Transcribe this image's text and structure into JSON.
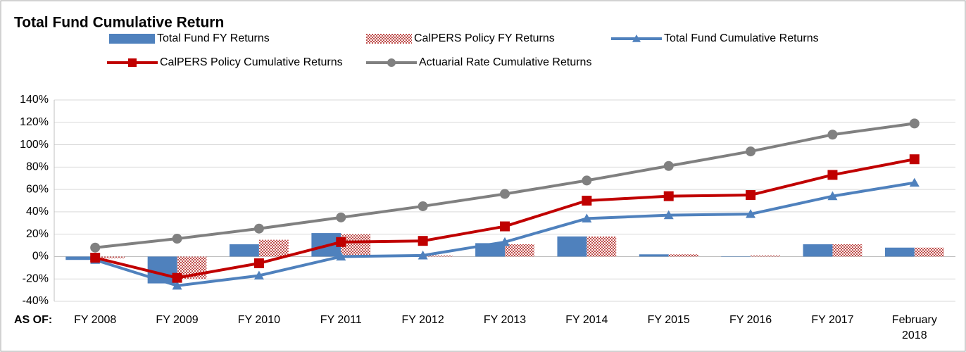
{
  "chart_data": {
    "type": "combo",
    "title": "Total Fund Cumulative Return",
    "xlabel": "AS OF:",
    "categories": [
      "FY 2008",
      "FY 2009",
      "FY 2010",
      "FY 2011",
      "FY 2012",
      "FY 2013",
      "FY 2014",
      "FY 2015",
      "FY 2016",
      "FY 2017",
      "February 2018"
    ],
    "series": [
      {
        "name": "Total Fund FY Returns",
        "type": "bar",
        "color": "#4f81bd",
        "pattern": false,
        "values": [
          -3,
          -24,
          11,
          21,
          0,
          12,
          18,
          2,
          0,
          11,
          8
        ]
      },
      {
        "name": "CalPERS Policy FY Returns",
        "type": "bar",
        "color": "#c0504d",
        "pattern": true,
        "values": [
          -1.5,
          -20,
          15,
          20,
          1,
          11,
          18,
          2,
          1,
          11,
          8
        ]
      },
      {
        "name": "Total Fund Cumulative Returns",
        "type": "line",
        "color": "#4f81bd",
        "marker": "triangle",
        "values": [
          -3,
          -26,
          -17,
          0,
          1,
          13,
          34,
          37,
          38,
          54,
          66
        ]
      },
      {
        "name": "CalPERS Policy Cumulative Returns",
        "type": "line",
        "color": "#c00000",
        "marker": "square",
        "values": [
          -1,
          -19,
          -6,
          13,
          14,
          27,
          50,
          54,
          55,
          73,
          87
        ]
      },
      {
        "name": "Actuarial Rate Cumulative Returns",
        "type": "line",
        "color": "#808080",
        "marker": "circle",
        "values": [
          8,
          16,
          25,
          35,
          45,
          56,
          68,
          81,
          94,
          109,
          119
        ]
      }
    ],
    "ylim": [
      -40,
      140
    ],
    "yticks": [
      {
        "value": -40,
        "label": "-40%"
      },
      {
        "value": -20,
        "label": "-20%"
      },
      {
        "value": 0,
        "label": "0%"
      },
      {
        "value": 20,
        "label": "20%"
      },
      {
        "value": 40,
        "label": "40%"
      },
      {
        "value": 60,
        "label": "60%"
      },
      {
        "value": 80,
        "label": "80%"
      },
      {
        "value": 100,
        "label": "100%"
      },
      {
        "value": 120,
        "label": "120%"
      },
      {
        "value": 140,
        "label": "140%"
      }
    ],
    "grid": true
  }
}
